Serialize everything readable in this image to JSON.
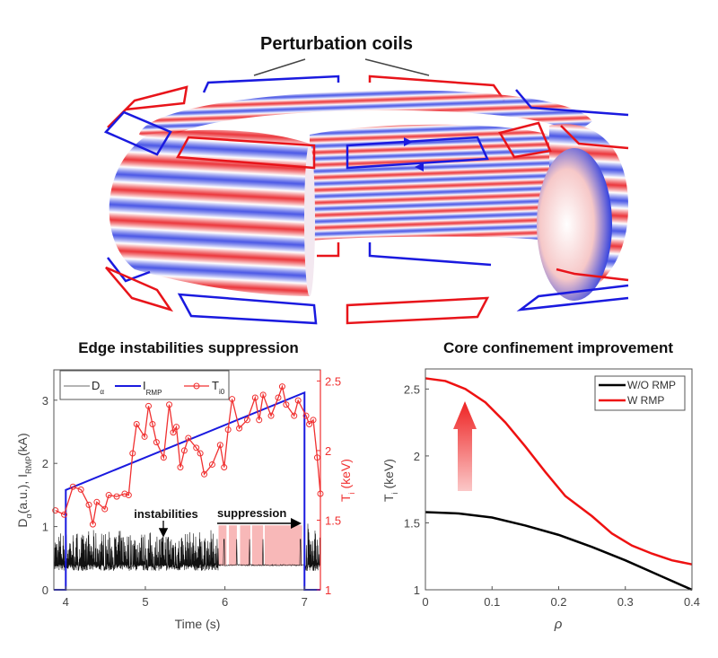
{
  "diagram": {
    "title": "Perturbation coils",
    "colors": {
      "red": "#e8141a",
      "blue": "#1a1adf",
      "leader": "#444444"
    }
  },
  "chart_data": [
    {
      "type": "line",
      "title": "Edge instabilities suppression",
      "xlabel": "Time (s)",
      "ylabel_left": {
        "main": "D",
        "sub1": "α",
        "mid": "(a.u.),  I",
        "sub2": "RMP",
        "end": "(kA)"
      },
      "ylabel_right": {
        "main": "T",
        "sub": "i",
        "end": " (keV)"
      },
      "xlim": [
        3.85,
        7.2
      ],
      "ylim_left": [
        0,
        3.48
      ],
      "ylim_right": [
        1,
        2.58
      ],
      "xticks": [
        "4",
        "5",
        "6",
        "7"
      ],
      "yticks_left": [
        "0",
        "1",
        "2",
        "3"
      ],
      "yticks_right": [
        "1",
        "1.5",
        "2",
        "2.5"
      ],
      "legend": {
        "placement": "top-left",
        "entries": [
          {
            "main": "D",
            "sub": "α",
            "color": "#888888"
          },
          {
            "main": "I",
            "sub": "RMP",
            "color": "#1a1adf"
          },
          {
            "main": "T",
            "sub": "i0",
            "color": "#f03030"
          }
        ]
      },
      "series": [
        {
          "name": "I_RMP",
          "axis": "left",
          "color": "#1a1adf",
          "x": [
            3.85,
            4.0,
            4.0,
            7.0,
            7.0,
            7.2
          ],
          "y": [
            0,
            0,
            1.58,
            3.12,
            0,
            0
          ]
        },
        {
          "name": "T_i0",
          "axis": "right",
          "color": "#f03030",
          "marker": "circle",
          "x": [
            3.87,
            3.98,
            4.09,
            4.19,
            4.29,
            4.34,
            4.39,
            4.49,
            4.54,
            4.64,
            4.74,
            4.79,
            4.84,
            4.89,
            4.99,
            5.04,
            5.09,
            5.14,
            5.23,
            5.3,
            5.35,
            5.39,
            5.44,
            5.49,
            5.54,
            5.64,
            5.69,
            5.74,
            5.84,
            5.94,
            5.99,
            6.04,
            6.09,
            6.18,
            6.28,
            6.38,
            6.43,
            6.48,
            6.58,
            6.67,
            6.72,
            6.77,
            6.87,
            6.92,
            7.02,
            7.06,
            7.11,
            7.16,
            7.2
          ],
          "y": [
            1.57,
            1.54,
            1.74,
            1.72,
            1.61,
            1.47,
            1.63,
            1.58,
            1.68,
            1.67,
            1.69,
            1.68,
            1.98,
            2.19,
            2.1,
            2.32,
            2.19,
            2.06,
            1.95,
            2.33,
            2.13,
            2.17,
            1.88,
            2.0,
            2.09,
            2.02,
            1.98,
            1.83,
            1.9,
            2.04,
            1.88,
            2.15,
            2.37,
            2.16,
            2.22,
            2.38,
            2.22,
            2.4,
            2.25,
            2.38,
            2.46,
            2.33,
            2.25,
            2.36,
            2.25,
            2.19,
            2.22,
            1.95,
            1.69
          ]
        },
        {
          "name": "D_alpha",
          "axis": "left",
          "color": "#111111",
          "baseline": 0.38,
          "elm_amplitude_range": [
            0.3,
            1.0
          ],
          "elm_free_window": [
            5.92,
            7.0
          ],
          "isolated_spikes": [
            5.99,
            6.15,
            6.31,
            6.48,
            6.95
          ]
        }
      ],
      "shaded_regions": [
        [
          5.92,
          6.02
        ],
        [
          6.05,
          6.15
        ],
        [
          6.19,
          6.32
        ],
        [
          6.34,
          6.48
        ],
        [
          6.5,
          6.97
        ]
      ],
      "shaded_color": "#f8b8b8",
      "annotations": [
        {
          "text": "instabilities",
          "arrow": "down",
          "x": 5.25
        },
        {
          "text": "suppression",
          "arrow": "right",
          "x_from": 5.92,
          "x_to": 7.0
        }
      ]
    },
    {
      "type": "line",
      "title": "Core confinement improvement",
      "xlabel": "ρ",
      "ylabel": {
        "main": "T",
        "sub": "i",
        "end": " (keV)"
      },
      "xlim": [
        0,
        0.4
      ],
      "ylim": [
        1,
        2.65
      ],
      "xticks": [
        "0",
        "0.1",
        "0.2",
        "0.3",
        "0.4"
      ],
      "yticks": [
        "1",
        "1.5",
        "2",
        "2.5"
      ],
      "legend": {
        "placement": "top-right",
        "entries": [
          "W/O RMP",
          "W RMP"
        ]
      },
      "series": [
        {
          "name": "W/O RMP",
          "color": "#000000",
          "x": [
            0,
            0.05,
            0.1,
            0.15,
            0.2,
            0.25,
            0.3,
            0.35,
            0.4
          ],
          "y": [
            1.58,
            1.57,
            1.54,
            1.48,
            1.41,
            1.32,
            1.22,
            1.11,
            1.0
          ]
        },
        {
          "name": "W RMP",
          "color": "#ee1111",
          "x": [
            0,
            0.03,
            0.06,
            0.09,
            0.12,
            0.15,
            0.18,
            0.21,
            0.25,
            0.28,
            0.31,
            0.34,
            0.37,
            0.4
          ],
          "y": [
            2.58,
            2.56,
            2.5,
            2.4,
            2.25,
            2.07,
            1.88,
            1.7,
            1.55,
            1.42,
            1.33,
            1.27,
            1.22,
            1.19
          ]
        }
      ],
      "annotations": [
        {
          "type": "arrow",
          "direction": "up",
          "color": "#ee3333"
        }
      ]
    }
  ]
}
